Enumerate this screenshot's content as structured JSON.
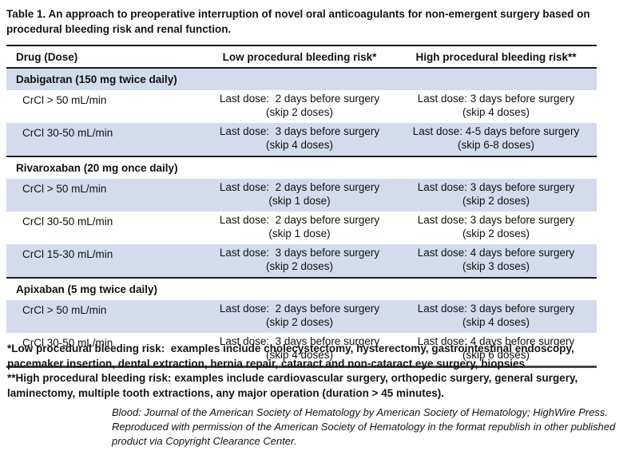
{
  "title": "Table 1. An approach to preoperative interruption of novel oral anticoagulants for non-emergent surgery based on procedural bleeding risk and renal function.",
  "table": {
    "col_headers": [
      "Drug (Dose)",
      "Low procedural bleeding risk*",
      "High procedural bleeding risk**"
    ],
    "sections": [
      {
        "drug": "Dabigatran (150 mg twice daily)",
        "rows": [
          {
            "label": "CrCl > 50 mL/min",
            "low1": "Last dose:  2 days before surgery",
            "low2": "(skip 2 doses)",
            "high1": "Last dose: 3 days before surgery",
            "high2": "(skip 4 doses)"
          },
          {
            "label": "CrCl 30-50 mL/min",
            "low1": "Last dose:  3 days before surgery",
            "low2": "(skip 4 doses)",
            "high1": "Last dose: 4-5 days before surgery",
            "high2": "(skip 6-8 doses)"
          }
        ]
      },
      {
        "drug": "Rivaroxaban (20 mg once daily)",
        "rows": [
          {
            "label": "CrCl > 50 mL/min",
            "low1": "Last dose:  2 days before surgery",
            "low2": "(skip 1 dose)",
            "high1": "Last dose: 3 days before surgery",
            "high2": "(skip 2 doses)"
          },
          {
            "label": "CrCl 30-50 mL/min",
            "low1": "Last dose:  2 days before surgery",
            "low2": "(skip 1 dose)",
            "high1": "Last dose: 3 days before surgery",
            "high2": "(skip 2 doses)"
          },
          {
            "label": "CrCl 15-30 mL/min",
            "low1": "Last dose:  3 days before surgery",
            "low2": "(skip 2 doses)",
            "high1": "Last dose: 4 days before surgery",
            "high2": "(skip 3 doses)"
          }
        ]
      },
      {
        "drug": "Apixaban (5 mg twice daily)",
        "rows": [
          {
            "label": "CrCl > 50 mL/min",
            "low1": "Last dose:  2 days before surgery",
            "low2": "(skip 2 doses)",
            "high1": "Last dose: 3 days before surgery",
            "high2": "(skip 4 doses)"
          },
          {
            "label": "CrCl 30-50 mL/min",
            "low1": "Last dose:  3 days before surgery",
            "low2": "(skip 4 doses)",
            "high1": "Last dose: 4 days before surgery",
            "high2": "(skip 6 doses)"
          }
        ]
      }
    ]
  },
  "footnotes": [
    "*Low procedural bleeding risk:  examples include cholecystectomy, hysterectomy, gastrointestinal endoscopy, pacemaker insertion, dental extraction, hernia repair, cataract and non-cataract eye surgery, biopsies",
    "**High procedural bleeding risk: examples include cardiovascular surgery, orthopedic surgery, general surgery, laminectomy, multiple tooth extractions, any major operation (duration > 45 minutes)."
  ],
  "citation": {
    "line1": "Blood: Journal of the American Society of Hematology by American Society of Hematology; HighWire Press.",
    "line2": "Reproduced with permission of the American Society of Hematology in the format republish in other published",
    "line3": "product via Copyright Clearance Center."
  },
  "colors": {
    "row_shade": "#d3dbec",
    "rule_dark": "#1a1a1a",
    "rule_bottom": "#454545"
  }
}
